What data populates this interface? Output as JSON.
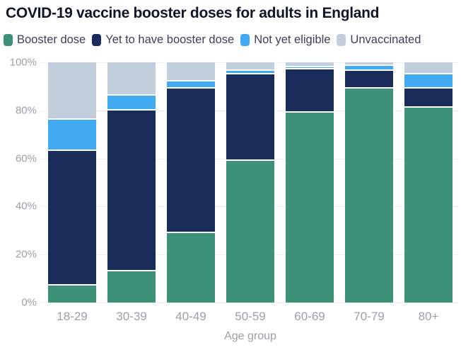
{
  "title": "COVID-19 vaccine booster doses for adults in England",
  "colors": {
    "background": "#ffffff",
    "title_text": "#11152a",
    "legend_text": "#3d4057",
    "axis_text": "#9ba0a8",
    "gridline": "#edeff0",
    "segment_separator": "#ffffff"
  },
  "chart_data": {
    "type": "bar",
    "stacked": true,
    "title": "COVID-19 vaccine booster doses for adults in England",
    "categories": [
      "18-29",
      "30-39",
      "40-49",
      "50-59",
      "60-69",
      "70-79",
      "80+"
    ],
    "series": [
      {
        "name": "Booster dose",
        "color": "#3d9178",
        "values": [
          7,
          13,
          29,
          59,
          79,
          89,
          81
        ]
      },
      {
        "name": "Yet to have booster dose",
        "color": "#1a2c59",
        "values": [
          56,
          67,
          60,
          36,
          18,
          7.5,
          8
        ]
      },
      {
        "name": "Not yet eligible",
        "color": "#41aaf1",
        "values": [
          13,
          6,
          3,
          1.5,
          1,
          2,
          6
        ]
      },
      {
        "name": "Unvaccinated",
        "color": "#c3cedd",
        "values": [
          24,
          14,
          8,
          3.5,
          2,
          1.5,
          5
        ]
      }
    ],
    "xlabel": "Age group",
    "ylabel": "",
    "ylim": [
      0,
      100
    ],
    "yticks": [
      "0%",
      "20%",
      "40%",
      "60%",
      "80%",
      "100%"
    ],
    "grid": true,
    "legend_position": "top"
  }
}
